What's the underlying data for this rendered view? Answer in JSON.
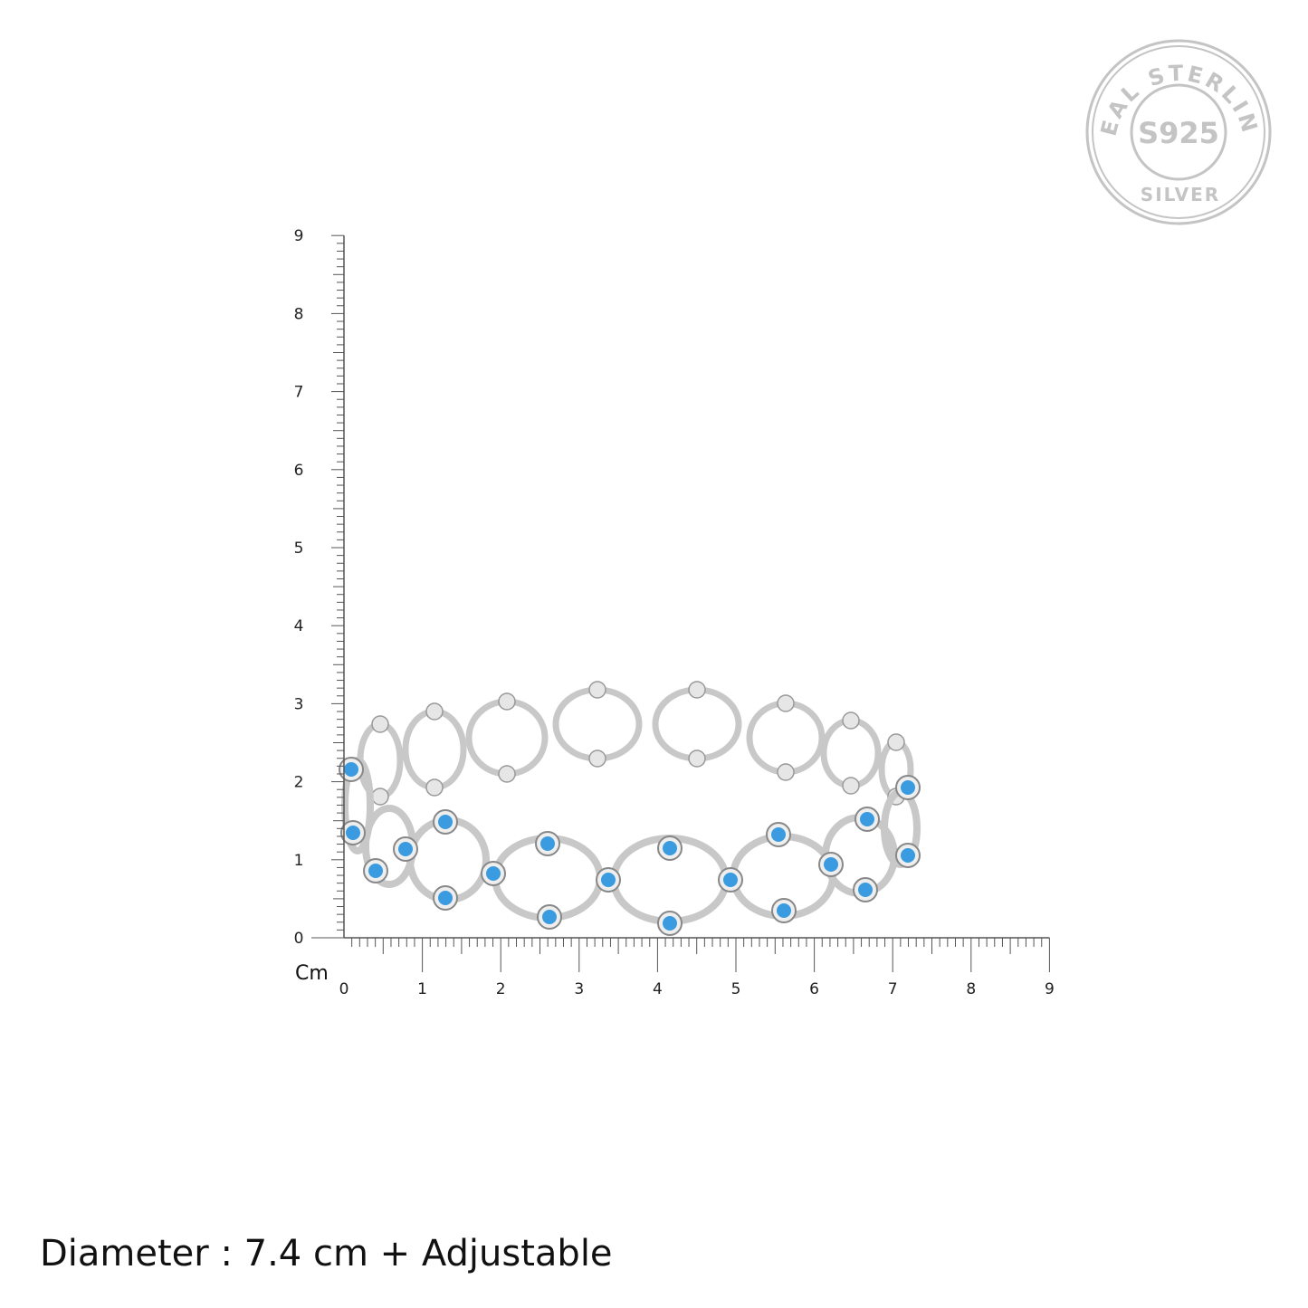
{
  "seal": {
    "outer_text": "REAL STERLING",
    "center_text": "S925",
    "bottom_text": "SILVER",
    "color": "#bdbdbd"
  },
  "ruler": {
    "unit_label": "Cm",
    "x_ticks": [
      "0",
      "1",
      "2",
      "3",
      "4",
      "5",
      "6",
      "7",
      "8",
      "9"
    ],
    "y_ticks": [
      "0",
      "1",
      "2",
      "3",
      "4",
      "5",
      "6",
      "7",
      "8",
      "9"
    ],
    "range_cm": [
      0,
      9
    ],
    "minor_step_cm": 0.1,
    "color": "#555555"
  },
  "product": {
    "metal_color": "#d9d9d9",
    "stone_color": "#3a9be0"
  },
  "caption": "Diameter : 7.4 cm + Adjustable"
}
